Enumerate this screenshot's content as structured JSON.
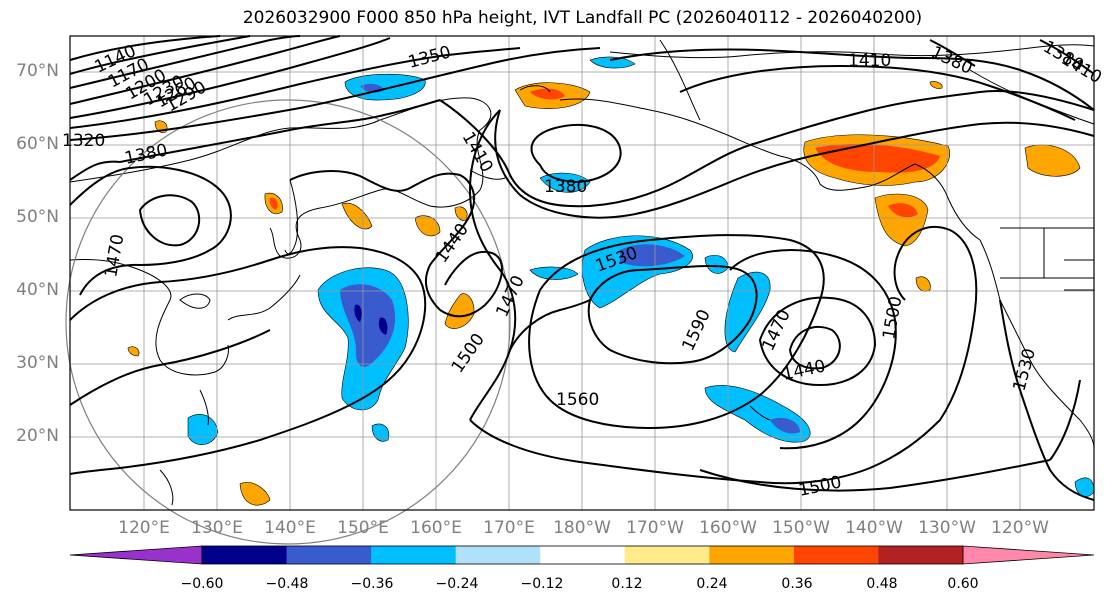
{
  "title": "2026032900 F000 850 hPa height, IVT Landfall PC (2026040112 - 2026040200)",
  "lat_labels": [
    "70°N",
    "60°N",
    "50°N",
    "40°N",
    "30°N",
    "20°N"
  ],
  "lon_labels": [
    "120°E",
    "130°E",
    "140°E",
    "150°E",
    "160°E",
    "170°E",
    "180°W",
    "170°W",
    "160°W",
    "150°W",
    "140°W",
    "130°W",
    "120°W"
  ],
  "contour_labels": [
    "1140",
    "1170",
    "1200",
    "1230",
    "1260",
    "1290",
    "1320",
    "1350",
    "1380",
    "1380",
    "1410",
    "1380",
    "1410",
    "1410",
    "1380",
    "1440",
    "1470",
    "1470",
    "1470",
    "1500",
    "1500",
    "1500",
    "1530",
    "1530",
    "1560",
    "1590",
    "1440"
  ],
  "colorbar": {
    "colors": [
      "#9932CC",
      "#00008B",
      "#3A5BCD",
      "#00BFFF",
      "#B0E0FA",
      "#FFFFFF",
      "#FFEB8A",
      "#FFA500",
      "#FF4500",
      "#B22222",
      "#FF88AA"
    ],
    "tick_labels": [
      "−0.60",
      "−0.48",
      "−0.36",
      "−0.24",
      "−0.12",
      "0.12",
      "0.24",
      "0.36",
      "0.48",
      "0.60"
    ]
  },
  "colors": {
    "contour": "#000000",
    "grid": "#999999",
    "coast": "#000000",
    "tick_text": "#808080"
  }
}
